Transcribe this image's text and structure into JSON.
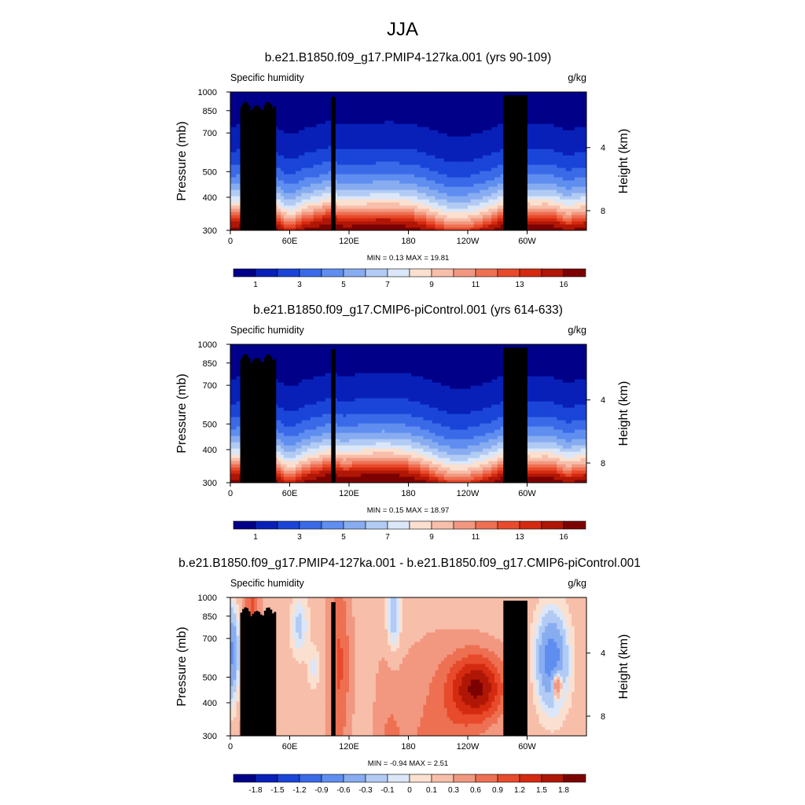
{
  "figure_title": "JJA",
  "chart_data": [
    {
      "type": "heatmap",
      "title": "b.e21.B1850.f09_g17.PMIP4-127ka.001 (yrs 90-109)",
      "left_label": "Specific humidity",
      "right_label": "g/kg",
      "ylabel": "Pressure (mb)",
      "ylabel_right": "Height (km)",
      "xlabel": "",
      "x_ticks": [
        "0",
        "60E",
        "120E",
        "180",
        "120W",
        "60W"
      ],
      "y_ticks": [
        "300",
        "400",
        "500",
        "700",
        "850",
        "1000"
      ],
      "y_ticks_right": [
        "8",
        "4"
      ],
      "ylim": [
        1000,
        300
      ],
      "xlim": [
        0,
        360
      ],
      "min_text": "MIN =   0.13",
      "max_text": "MAX =  19.81",
      "min": 0.13,
      "max": 19.81,
      "colorbar_ticks": [
        "1",
        "3",
        "5",
        "7",
        "9",
        "11",
        "13",
        "16"
      ],
      "mode": "abs",
      "colors": [
        "#000088",
        "#0820b8",
        "#1a45d8",
        "#3a6ae8",
        "#5f8ef0",
        "#88acf0",
        "#b2cbf4",
        "#dbe7f8",
        "#fbe0d0",
        "#f7beaa",
        "#f29880",
        "#ee7052",
        "#e84a2c",
        "#d42a10",
        "#b01606",
        "#7c0202"
      ]
    },
    {
      "type": "heatmap",
      "title": "b.e21.B1850.f09_g17.CMIP6-piControl.001 (yrs 614-633)",
      "left_label": "Specific humidity",
      "right_label": "g/kg",
      "ylabel": "Pressure (mb)",
      "ylabel_right": "Height (km)",
      "xlabel": "",
      "x_ticks": [
        "0",
        "60E",
        "120E",
        "180",
        "120W",
        "60W"
      ],
      "y_ticks": [
        "300",
        "400",
        "500",
        "700",
        "850",
        "1000"
      ],
      "y_ticks_right": [
        "8",
        "4"
      ],
      "ylim": [
        1000,
        300
      ],
      "xlim": [
        0,
        360
      ],
      "min_text": "MIN =   0.15",
      "max_text": "MAX =  18.97",
      "min": 0.15,
      "max": 18.97,
      "colorbar_ticks": [
        "1",
        "3",
        "5",
        "7",
        "9",
        "11",
        "13",
        "16"
      ],
      "mode": "abs",
      "colors": [
        "#000088",
        "#0820b8",
        "#1a45d8",
        "#3a6ae8",
        "#5f8ef0",
        "#88acf0",
        "#b2cbf4",
        "#dbe7f8",
        "#fbe0d0",
        "#f7beaa",
        "#f29880",
        "#ee7052",
        "#e84a2c",
        "#d42a10",
        "#b01606",
        "#7c0202"
      ]
    },
    {
      "type": "heatmap",
      "title": "b.e21.B1850.f09_g17.PMIP4-127ka.001 - b.e21.B1850.f09_g17.CMIP6-piControl.001",
      "left_label": "Specific humidity",
      "right_label": "g/kg",
      "ylabel": "Pressure (mb)",
      "ylabel_right": "Height (km)",
      "xlabel": "",
      "x_ticks": [
        "0",
        "60E",
        "120E",
        "180",
        "120W",
        "60W"
      ],
      "y_ticks": [
        "300",
        "400",
        "500",
        "700",
        "850",
        "1000"
      ],
      "y_ticks_right": [
        "8",
        "4"
      ],
      "ylim": [
        1000,
        300
      ],
      "xlim": [
        0,
        360
      ],
      "min_text": "MIN =  -0.94",
      "max_text": "MAX =   2.51",
      "min": -0.94,
      "max": 2.51,
      "colorbar_ticks": [
        "-1.8",
        "-1.5",
        "-1.2",
        "-0.9",
        "-0.6",
        "-0.3",
        "-0.1",
        "0",
        "0.1",
        "0.3",
        "0.6",
        "0.9",
        "1.2",
        "1.5",
        "1.8"
      ],
      "mode": "diff",
      "colors": [
        "#000088",
        "#0820b8",
        "#1a45d8",
        "#3a6ae8",
        "#5f8ef0",
        "#88acf0",
        "#b2cbf4",
        "#dbe7f8",
        "#fbe0d0",
        "#f7beaa",
        "#f29880",
        "#ee7052",
        "#e84a2c",
        "#d42a10",
        "#b01606",
        "#7c0202"
      ]
    }
  ]
}
